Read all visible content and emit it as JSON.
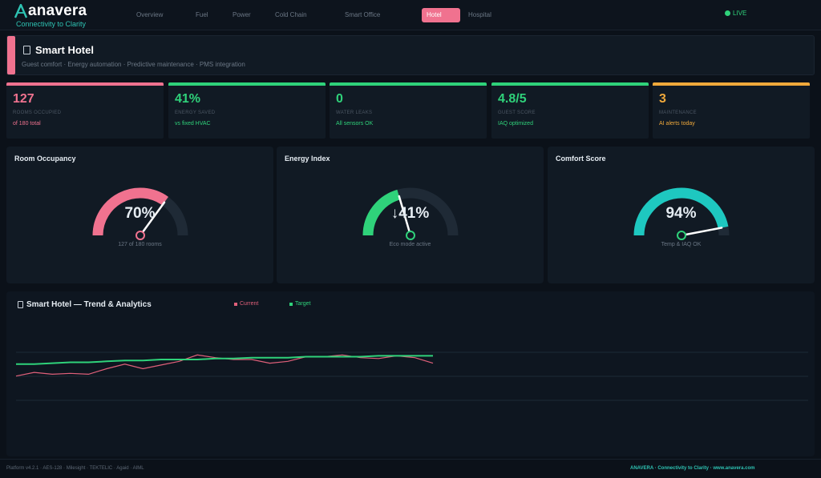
{
  "brand": {
    "name": "anavera",
    "tagline": "Connectivity to Clarity"
  },
  "nav": {
    "tabs": [
      {
        "label": "Overview",
        "active": false
      },
      {
        "label": "Fuel",
        "active": false
      },
      {
        "label": "Power",
        "active": false
      },
      {
        "label": "Cold Chain",
        "active": false
      },
      {
        "label": "Smart Office",
        "active": false
      },
      {
        "label": "Hotel",
        "active": true
      },
      {
        "label": "Hospital",
        "active": false
      }
    ],
    "status": "LIVE"
  },
  "header": {
    "title": "Smart Hotel",
    "subtitle": "Guest comfort · Energy automation · Predictive maintenance · PMS integration"
  },
  "kpis": [
    {
      "value": "127",
      "label": "ROOMS OCCUPIED",
      "note": "of 180 total",
      "color": "#f0728f"
    },
    {
      "value": "41%",
      "label": "ENERGY SAVED",
      "note": "vs fixed HVAC",
      "color": "#2fd27a"
    },
    {
      "value": "0",
      "label": "WATER LEAKS",
      "note": "All sensors OK",
      "color": "#2fd27a"
    },
    {
      "value": "4.8/5",
      "label": "GUEST SCORE",
      "note": "IAQ optimized",
      "color": "#2fd27a"
    },
    {
      "value": "3",
      "label": "MAINTENANCE",
      "note": "AI alerts today",
      "color": "#f0a93b"
    }
  ],
  "gauges": [
    {
      "title": "Room Occupancy",
      "display": "70%",
      "value": 0.7,
      "sub": "127 of 180 rooms",
      "color": "#f0728f",
      "knob_color": "#f0728f"
    },
    {
      "title": "Energy Index",
      "display": "↓41%",
      "value": 0.41,
      "sub": "Eco mode active",
      "color": "#2fd27a",
      "knob_color": "#2fd27a"
    },
    {
      "title": "Comfort Score",
      "display": "94%",
      "value": 0.94,
      "sub": "Temp & IAQ OK",
      "color": "#1ec8c0",
      "knob_color": "#2fd27a"
    }
  ],
  "trend": {
    "title": "Smart Hotel — Trend & Analytics",
    "legend_current": "Current",
    "legend_target": "Target",
    "colors": {
      "current": "#e0607a",
      "target": "#2fd27a",
      "grid": "#1c2a36"
    }
  },
  "chart_data": {
    "type": "line",
    "title": "Smart Hotel — Trend & Analytics",
    "x": [
      0,
      1,
      2,
      3,
      4,
      5,
      6,
      7,
      8,
      9,
      10,
      11,
      12,
      13,
      14,
      15,
      16,
      17,
      18,
      19,
      20,
      21,
      22,
      23
    ],
    "series": [
      {
        "name": "Current",
        "values": [
          37,
          41,
          39,
          40,
          39,
          45,
          50,
          45,
          49,
          53,
          60,
          57,
          55,
          55,
          51,
          53,
          58,
          58,
          60,
          57,
          56,
          59,
          57,
          51
        ]
      },
      {
        "name": "Target",
        "values": [
          50,
          50,
          51,
          52,
          52,
          53,
          54,
          54,
          55,
          55,
          55,
          56,
          56,
          57,
          57,
          57,
          58,
          58,
          58,
          58,
          59,
          59,
          59,
          59
        ]
      }
    ],
    "ylim": [
      0,
      100
    ],
    "grid": true
  },
  "footer": {
    "left": "Platform v4.2.1 · AES-128 · Milesight · TEKTELIC · Agaid · AIML",
    "right": "ANAVERA · Connectivity to Clarity · www.anavera.com"
  }
}
